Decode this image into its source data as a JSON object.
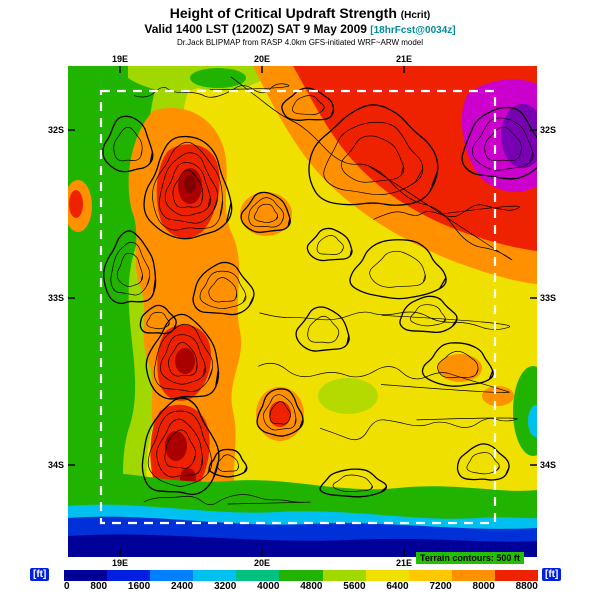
{
  "header": {
    "title": "Height of Critical Updraft Strength",
    "title_suffix": "(Hcrit)",
    "valid_line": "Valid 1400 LST (1200Z) SAT 9 May 2009",
    "valid_suffix": "[18hrFcst@0034z]",
    "model_line": "Dr.Jack BLIPMAP from RASP 4.0km GFS-initiated WRF~ARW model"
  },
  "map": {
    "x_ticks": [
      "19E",
      "20E",
      "21E"
    ],
    "y_ticks": [
      "32S",
      "33S",
      "34S"
    ],
    "annotation": "Terrain contours: 500 ft"
  },
  "colorbar": {
    "unit_left": "[ft]",
    "unit_right": "[ft]",
    "values": [
      "0",
      "800",
      "1600",
      "2400",
      "3200",
      "4000",
      "4800",
      "5600",
      "6400",
      "7200",
      "8000",
      "8800"
    ],
    "colors": [
      "#000099",
      "#0020e0",
      "#0080ff",
      "#00c0f0",
      "#00c080",
      "#20b400",
      "#a0d800",
      "#f0e000",
      "#ffc800",
      "#ff9100",
      "#ee2200"
    ]
  },
  "chart_data": {
    "type": "heatmap",
    "title": "Height of Critical Updraft Strength (Hcrit)",
    "subtitle": "Valid 1400 LST (1200Z) SAT 9 May 2009 [18hrFcst@0034z]",
    "source_line": "Dr.Jack BLIPMAP from RASP 4.0km GFS-initiated WRF~ARW model",
    "x_axis": {
      "ticks": [
        "19E",
        "20E",
        "21E"
      ]
    },
    "y_axis": {
      "ticks": [
        "32S",
        "33S",
        "34S"
      ]
    },
    "colorbar": {
      "units": "ft",
      "min": 0,
      "max": 8800,
      "step": 800,
      "levels": [
        0,
        800,
        1600,
        2400,
        3200,
        4000,
        4800,
        5600,
        6400,
        7200,
        8000,
        8800
      ]
    },
    "overlay": "Terrain contours: 500 ft",
    "inner_domain": "white dashed rectangle inset inside map",
    "regions": [
      {
        "area": "northeast interior",
        "estimate_ft": 8000,
        "note": "broad red maximum, magenta/purple >8800 at NE corner"
      },
      {
        "area": "central-western mountain ridges",
        "estimate_ft": 7200,
        "note": "orange/red ridgelines with dark-red cores, dense terrain contours"
      },
      {
        "area": "west coastal margin",
        "estimate_ft": 4000,
        "note": "green band along western edge"
      },
      {
        "area": "remaining interior",
        "estimate_ft": 5600,
        "note": "yellow background"
      },
      {
        "area": "southern ocean strip",
        "estimate_ft": 400,
        "note": "cyan/blue/dark-blue band along bottom (sea)"
      }
    ]
  }
}
